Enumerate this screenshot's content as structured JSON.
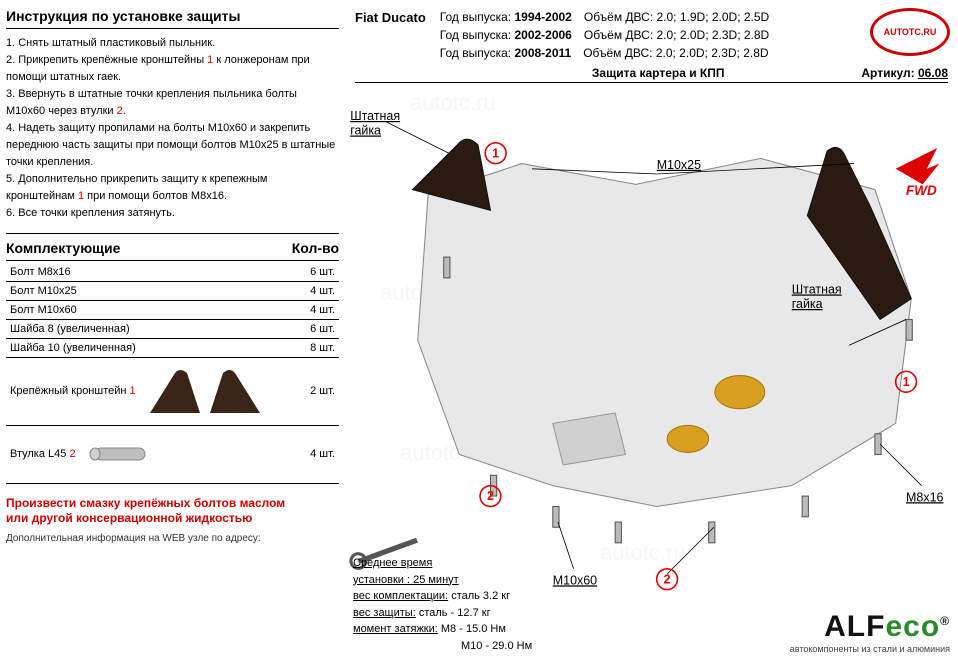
{
  "watermark": {
    "text": "AUTOTC.RU",
    "color": "#c00",
    "bg_text": "autotc.ru"
  },
  "left": {
    "instructions_title": "Инструкция по установке защиты",
    "steps": [
      "1.  Снять штатный пластиковый пыльник.",
      "2.  Прикрепить крепёжные кронштейны <r>1</r> к лонжеронам при помощи штатных гаек.",
      "3.  Ввернуть в штатные точки крепления пыльника болты M10x60 через втулки <r>2</r>.",
      "4.  Надеть защиту пропилами на болты М10х60 и закрепить переднюю часть защиты при помощи болтов М10х25 в штатные точки крепления.",
      "5.  Дополнительно прикрепить защиту к крепежным кронштейнам <r>1</r> при помощи болтов М8х16.",
      "6.  Все точки крепления затянуть."
    ],
    "parts_title": "Комплектующие",
    "qty_title": "Кол-во",
    "parts": [
      {
        "name": "Болт М8х16",
        "qty": "6 шт."
      },
      {
        "name": "Болт М10х25",
        "qty": "4 шт."
      },
      {
        "name": "Болт М10х60",
        "qty": "4 шт."
      },
      {
        "name": "Шайба 8 (увеличенная)",
        "qty": "6 шт."
      },
      {
        "name": "Шайба 10 (увеличенная)",
        "qty": "8 шт."
      }
    ],
    "bracket": {
      "name": "Крепёжный кронштейн",
      "num": "1",
      "qty": "2 шт.",
      "fill": "#472a18"
    },
    "bushing": {
      "name": "Втулка L45",
      "num": "2",
      "qty": "4 шт.",
      "fill": "#bfbfbf"
    },
    "footer_red_1": "Произвести смазку крепёжных болтов маслом",
    "footer_red_2": "или другой консервационной жидкостью",
    "footer_info": "Дополнительная информация на WEB узле по адресу:"
  },
  "right": {
    "model": "Fiat Ducato",
    "years": [
      {
        "label": "Год выпуска:",
        "val": "1994-2002",
        "eng_label": "Объём ДВС:",
        "eng": "2.0; 1.9D; 2.0D; 2.5D"
      },
      {
        "label": "Год выпуска:",
        "val": "2002-2006",
        "eng_label": "Объём ДВС:",
        "eng": "2.0; 2.0D; 2.3D; 2.8D"
      },
      {
        "label": "Год выпуска:",
        "val": "2008-2011",
        "eng_label": "Объём ДВС:",
        "eng": "2.0; 2.0D; 2.3D; 2.8D"
      }
    ],
    "subtitle": "Защита картера и КПП",
    "article_label": "Артикул:",
    "article": "06.08",
    "labels": {
      "standard_nut": "Штатная гайка",
      "m10x25": "М10х25",
      "m10x60": "М10х60",
      "m8x16": "М8х16",
      "fwd": "FWD"
    },
    "spec": {
      "time_label": "Среднее время",
      "time": "установки :  25 минут",
      "kit_label": "вес комплектации:",
      "kit": "сталь 3.2 кг",
      "prot_label": "вес защиты:",
      "prot": "сталь - 12.7 кг",
      "torque_label": "момент затяжки:",
      "torque1": "М8  -  15.0 Нм",
      "torque2": "М10 -  29.0 Нм"
    },
    "logo": {
      "brand": "ALF",
      "eco": "eco",
      "reg": "®",
      "sub": "автокомпоненты из стали и алюминия"
    }
  },
  "colors": {
    "red": "#d00",
    "bracket_fill": "#3a2517",
    "plate_fill": "#e8e8e8",
    "plate_stroke": "#888",
    "gold": "#d9a020",
    "fwd_red": "#d00"
  }
}
